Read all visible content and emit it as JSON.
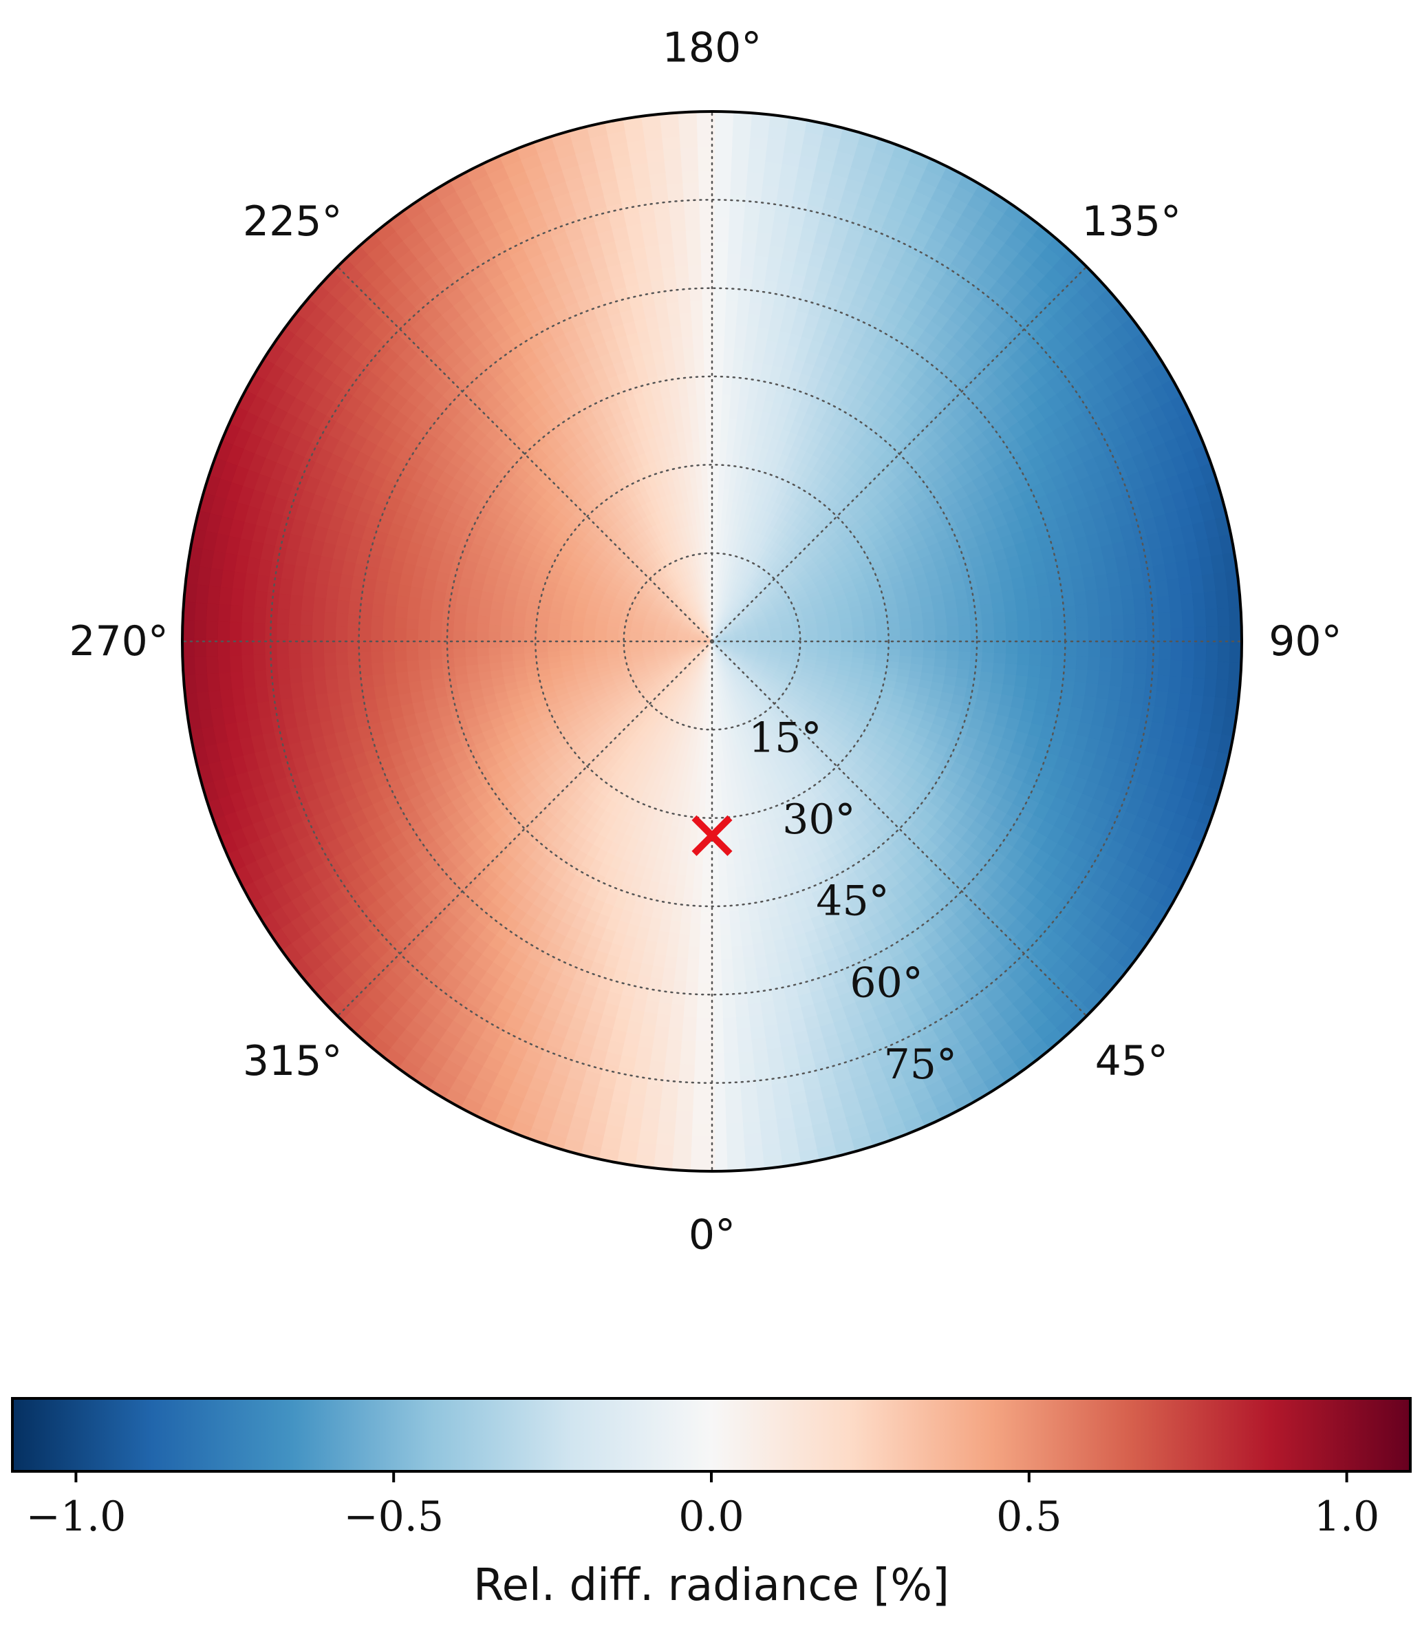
{
  "chart_data": {
    "type": "heatmap",
    "projection": "polar",
    "azimuth_direction": "counter-clockwise, 0° at bottom",
    "azimuth_ticks": [
      "0°",
      "45°",
      "90°",
      "135°",
      "180°",
      "225°",
      "270°",
      "315°"
    ],
    "azimuth_tick_values": [
      0,
      45,
      90,
      135,
      180,
      225,
      270,
      315
    ],
    "radial_ticks": [
      "15°",
      "30°",
      "45°",
      "60°",
      "75°"
    ],
    "radial_tick_values": [
      15,
      30,
      45,
      60,
      75
    ],
    "radial_max": 90,
    "grid": true,
    "marker": {
      "symbol": "x",
      "azimuth": 0,
      "zenith": 33,
      "color": "#e8121b"
    },
    "field_model": {
      "description": "approximate relative radiance difference pattern",
      "peak_positive_azimuth": 270,
      "peak_negative_azimuth": 90,
      "max_abs_value": 0.95
    },
    "colorbar": {
      "label": "Rel. diff. radiance [%]",
      "range": [
        -1.1,
        1.1
      ],
      "ticks": [
        -1.0,
        -0.5,
        0.0,
        0.5,
        1.0
      ],
      "tick_labels": [
        "−1.0",
        "−0.5",
        "0.0",
        "0.5",
        "1.0"
      ],
      "colormap": "RdBu_r"
    }
  }
}
